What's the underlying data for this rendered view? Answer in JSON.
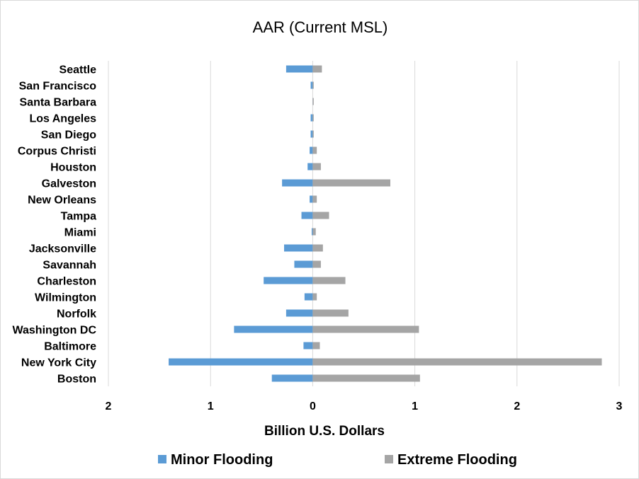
{
  "chart_data": {
    "type": "bar",
    "orientation": "horizontal",
    "title": "AAR (Current MSL)",
    "xlabel": "Billion U.S. Dollars",
    "ylabel": "",
    "xlim": [
      -2,
      3
    ],
    "x_tick_values": [
      -2,
      -1,
      0,
      1,
      2,
      3
    ],
    "x_tick_labels": [
      "2",
      "1",
      "0",
      "1",
      "2",
      "3"
    ],
    "grid": "vertical",
    "legend_position": "bottom",
    "categories": [
      "Seattle",
      "San Francisco",
      "Santa Barbara",
      "Los Angeles",
      "San Diego",
      "Corpus Christi",
      "Houston",
      "Galveston",
      "New Orleans",
      "Tampa",
      "Miami",
      "Jacksonville",
      "Savannah",
      "Charleston",
      "Wilmington",
      "Norfolk",
      "Washington DC",
      "Baltimore",
      "New York City",
      "Boston"
    ],
    "series": [
      {
        "name": "Minor Flooding",
        "color": "#5b9bd5",
        "values": [
          -0.26,
          -0.02,
          0.0,
          -0.02,
          -0.02,
          -0.03,
          -0.05,
          -0.3,
          -0.03,
          -0.11,
          -0.01,
          -0.28,
          -0.18,
          -0.48,
          -0.08,
          -0.26,
          -0.77,
          -0.09,
          -1.41,
          -0.4
        ]
      },
      {
        "name": "Extreme Flooding",
        "color": "#a5a5a5",
        "values": [
          0.09,
          0.01,
          0.01,
          0.01,
          0.01,
          0.04,
          0.08,
          0.76,
          0.04,
          0.16,
          0.03,
          0.1,
          0.08,
          0.32,
          0.04,
          0.35,
          1.04,
          0.07,
          2.83,
          1.05
        ]
      }
    ]
  }
}
